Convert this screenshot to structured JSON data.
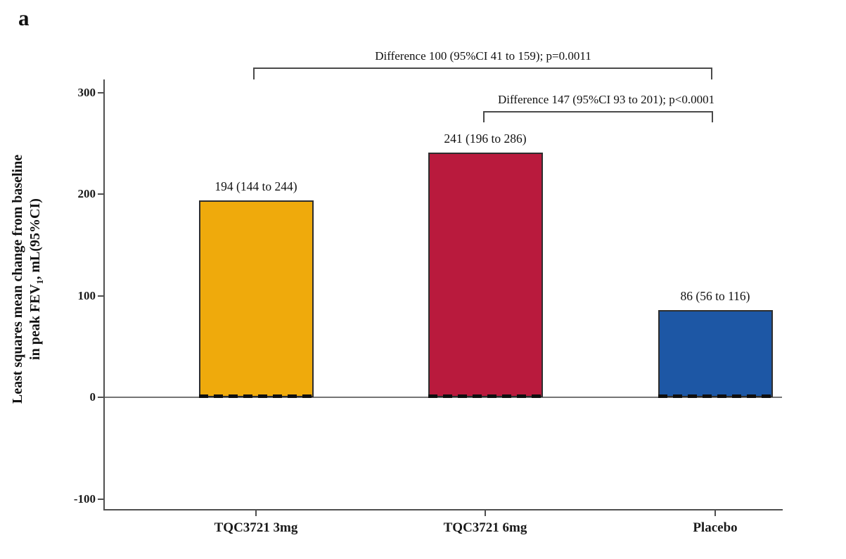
{
  "panel_label": "a",
  "y_axis": {
    "title_line1": "Least squares mean change from baseline",
    "title_line2_prefix": "in peak FEV",
    "title_line2_sub": "1",
    "title_line2_suffix": ", mL(95%CI)"
  },
  "chart_data": {
    "type": "bar",
    "title": "",
    "xlabel": "",
    "ylabel": "Least squares mean change from baseline in peak FEV1, mL(95%CI)",
    "ylim": [
      -100,
      300
    ],
    "yticks": [
      300,
      200,
      100,
      0,
      -100
    ],
    "grid": false,
    "categories": [
      "TQC3721 3mg",
      "TQC3721 6mg",
      "Placebo"
    ],
    "values": [
      194,
      241,
      86
    ],
    "ci": [
      [
        144,
        244
      ],
      [
        196,
        286
      ],
      [
        56,
        116
      ]
    ],
    "value_labels": [
      "194 (144 to 244)",
      "241 (196 to 286)",
      "86 (56 to 116)"
    ],
    "bar_colors": [
      "#EFAA0C",
      "#B91A3D",
      "#1D57A5"
    ],
    "comparisons": [
      {
        "label": "Difference 100 (95%CI 41 to 159); p=0.0011",
        "from": 0,
        "to": 2
      },
      {
        "label": "Difference 147 (95%CI 93 to 201); p<0.0001",
        "from": 1,
        "to": 2
      }
    ]
  }
}
